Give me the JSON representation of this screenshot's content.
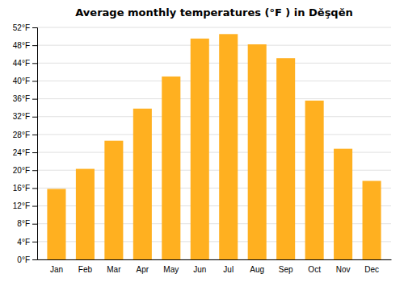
{
  "chart_data": {
    "type": "bar",
    "title": "Average monthly temperatures (°F ) in Dĕşqĕn",
    "categories": [
      "Jan",
      "Feb",
      "Mar",
      "Apr",
      "May",
      "Jun",
      "Jul",
      "Aug",
      "Sep",
      "Oct",
      "Nov",
      "Dec"
    ],
    "values": [
      15.8,
      20.3,
      26.6,
      33.8,
      41.0,
      49.5,
      50.5,
      48.2,
      45.1,
      35.6,
      24.8,
      17.6
    ],
    "color": "#FFB020",
    "ylim": [
      0,
      52
    ],
    "yticks": [
      {
        "value": 0,
        "label": "0°F"
      },
      {
        "value": 4,
        "label": "4°F"
      },
      {
        "value": 8,
        "label": "8°F"
      },
      {
        "value": 12,
        "label": "12°F"
      },
      {
        "value": 16,
        "label": "16°F"
      },
      {
        "value": 20,
        "label": "20°F"
      },
      {
        "value": 24,
        "label": "24°F"
      },
      {
        "value": 28,
        "label": "28°F"
      },
      {
        "value": 32,
        "label": "32°F"
      },
      {
        "value": 36,
        "label": "36°F"
      },
      {
        "value": 40,
        "label": "40°F"
      },
      {
        "value": 44,
        "label": "44°F"
      },
      {
        "value": 48,
        "label": "48°F"
      },
      {
        "value": 52,
        "label": "52°F"
      }
    ],
    "grid": true
  }
}
